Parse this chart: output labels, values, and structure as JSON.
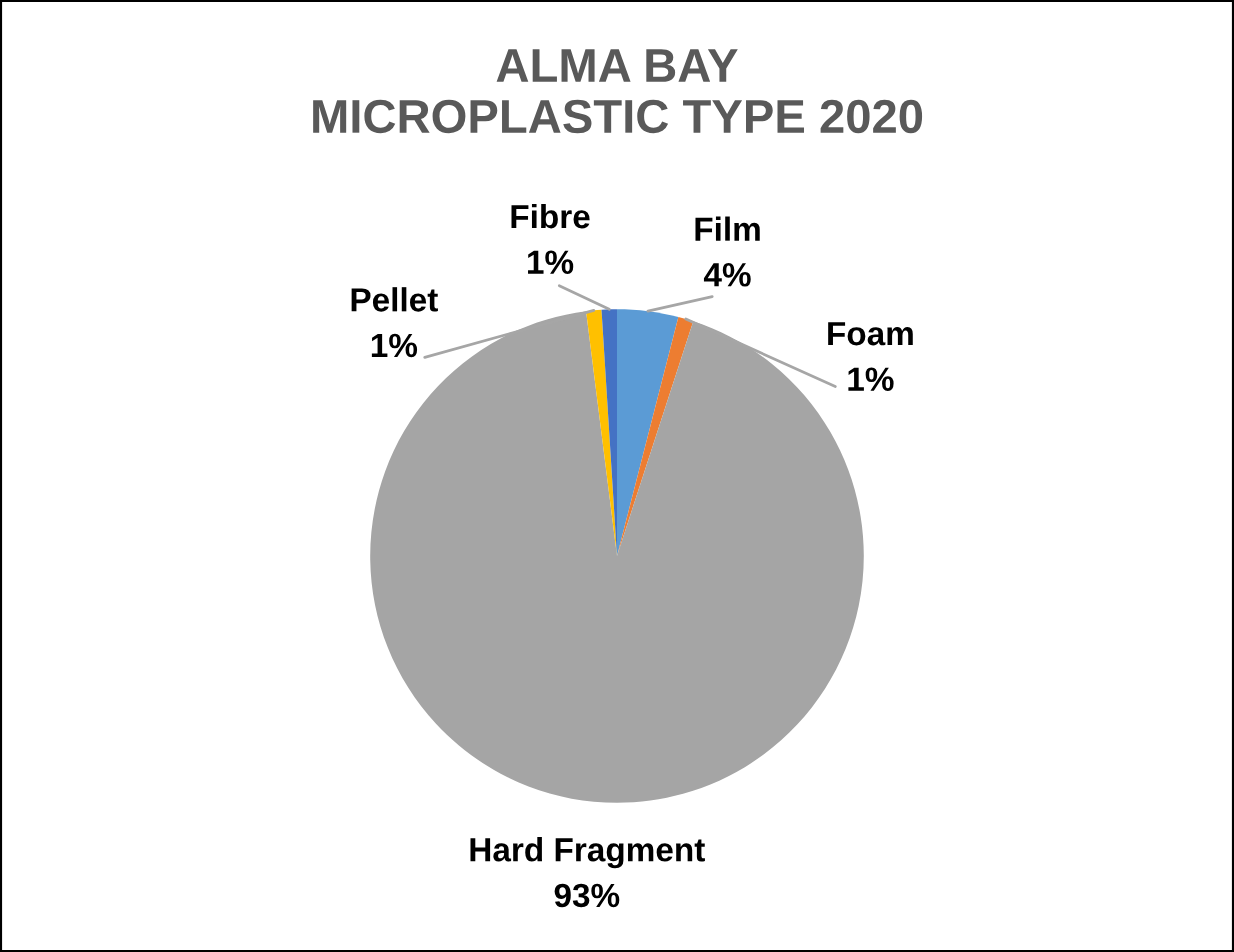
{
  "chart_data": {
    "type": "pie",
    "title": "ALMA BAY\nMICROPLASTIC TYPE 2020",
    "categories": [
      "Film",
      "Foam",
      "Hard Fragment",
      "Pellet",
      "Fibre"
    ],
    "values": [
      4,
      1,
      93,
      1,
      1
    ],
    "colors": [
      "#5b9bd5",
      "#ed7d31",
      "#a5a5a5",
      "#ffc000",
      "#4472c4"
    ],
    "value_labels": [
      "4%",
      "1%",
      "93%",
      "1%",
      "1%"
    ]
  }
}
